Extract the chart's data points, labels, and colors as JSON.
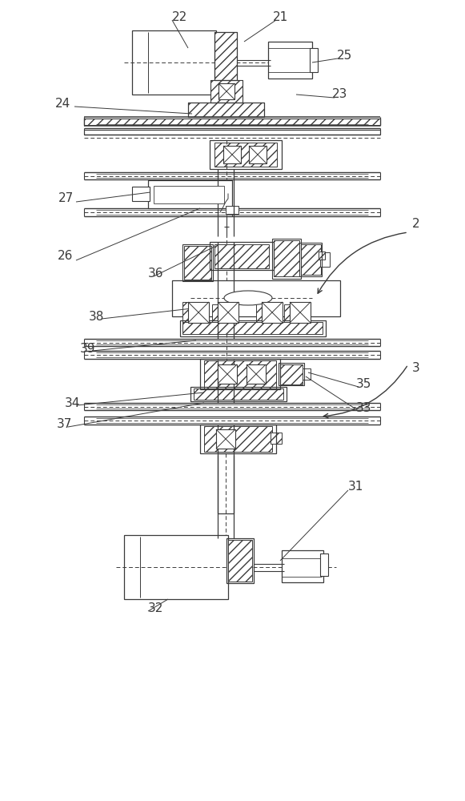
{
  "bg_color": "#ffffff",
  "lc": "#3a3a3a",
  "figsize": [
    5.81,
    10.0
  ],
  "dpi": 100,
  "label_fs": 11
}
